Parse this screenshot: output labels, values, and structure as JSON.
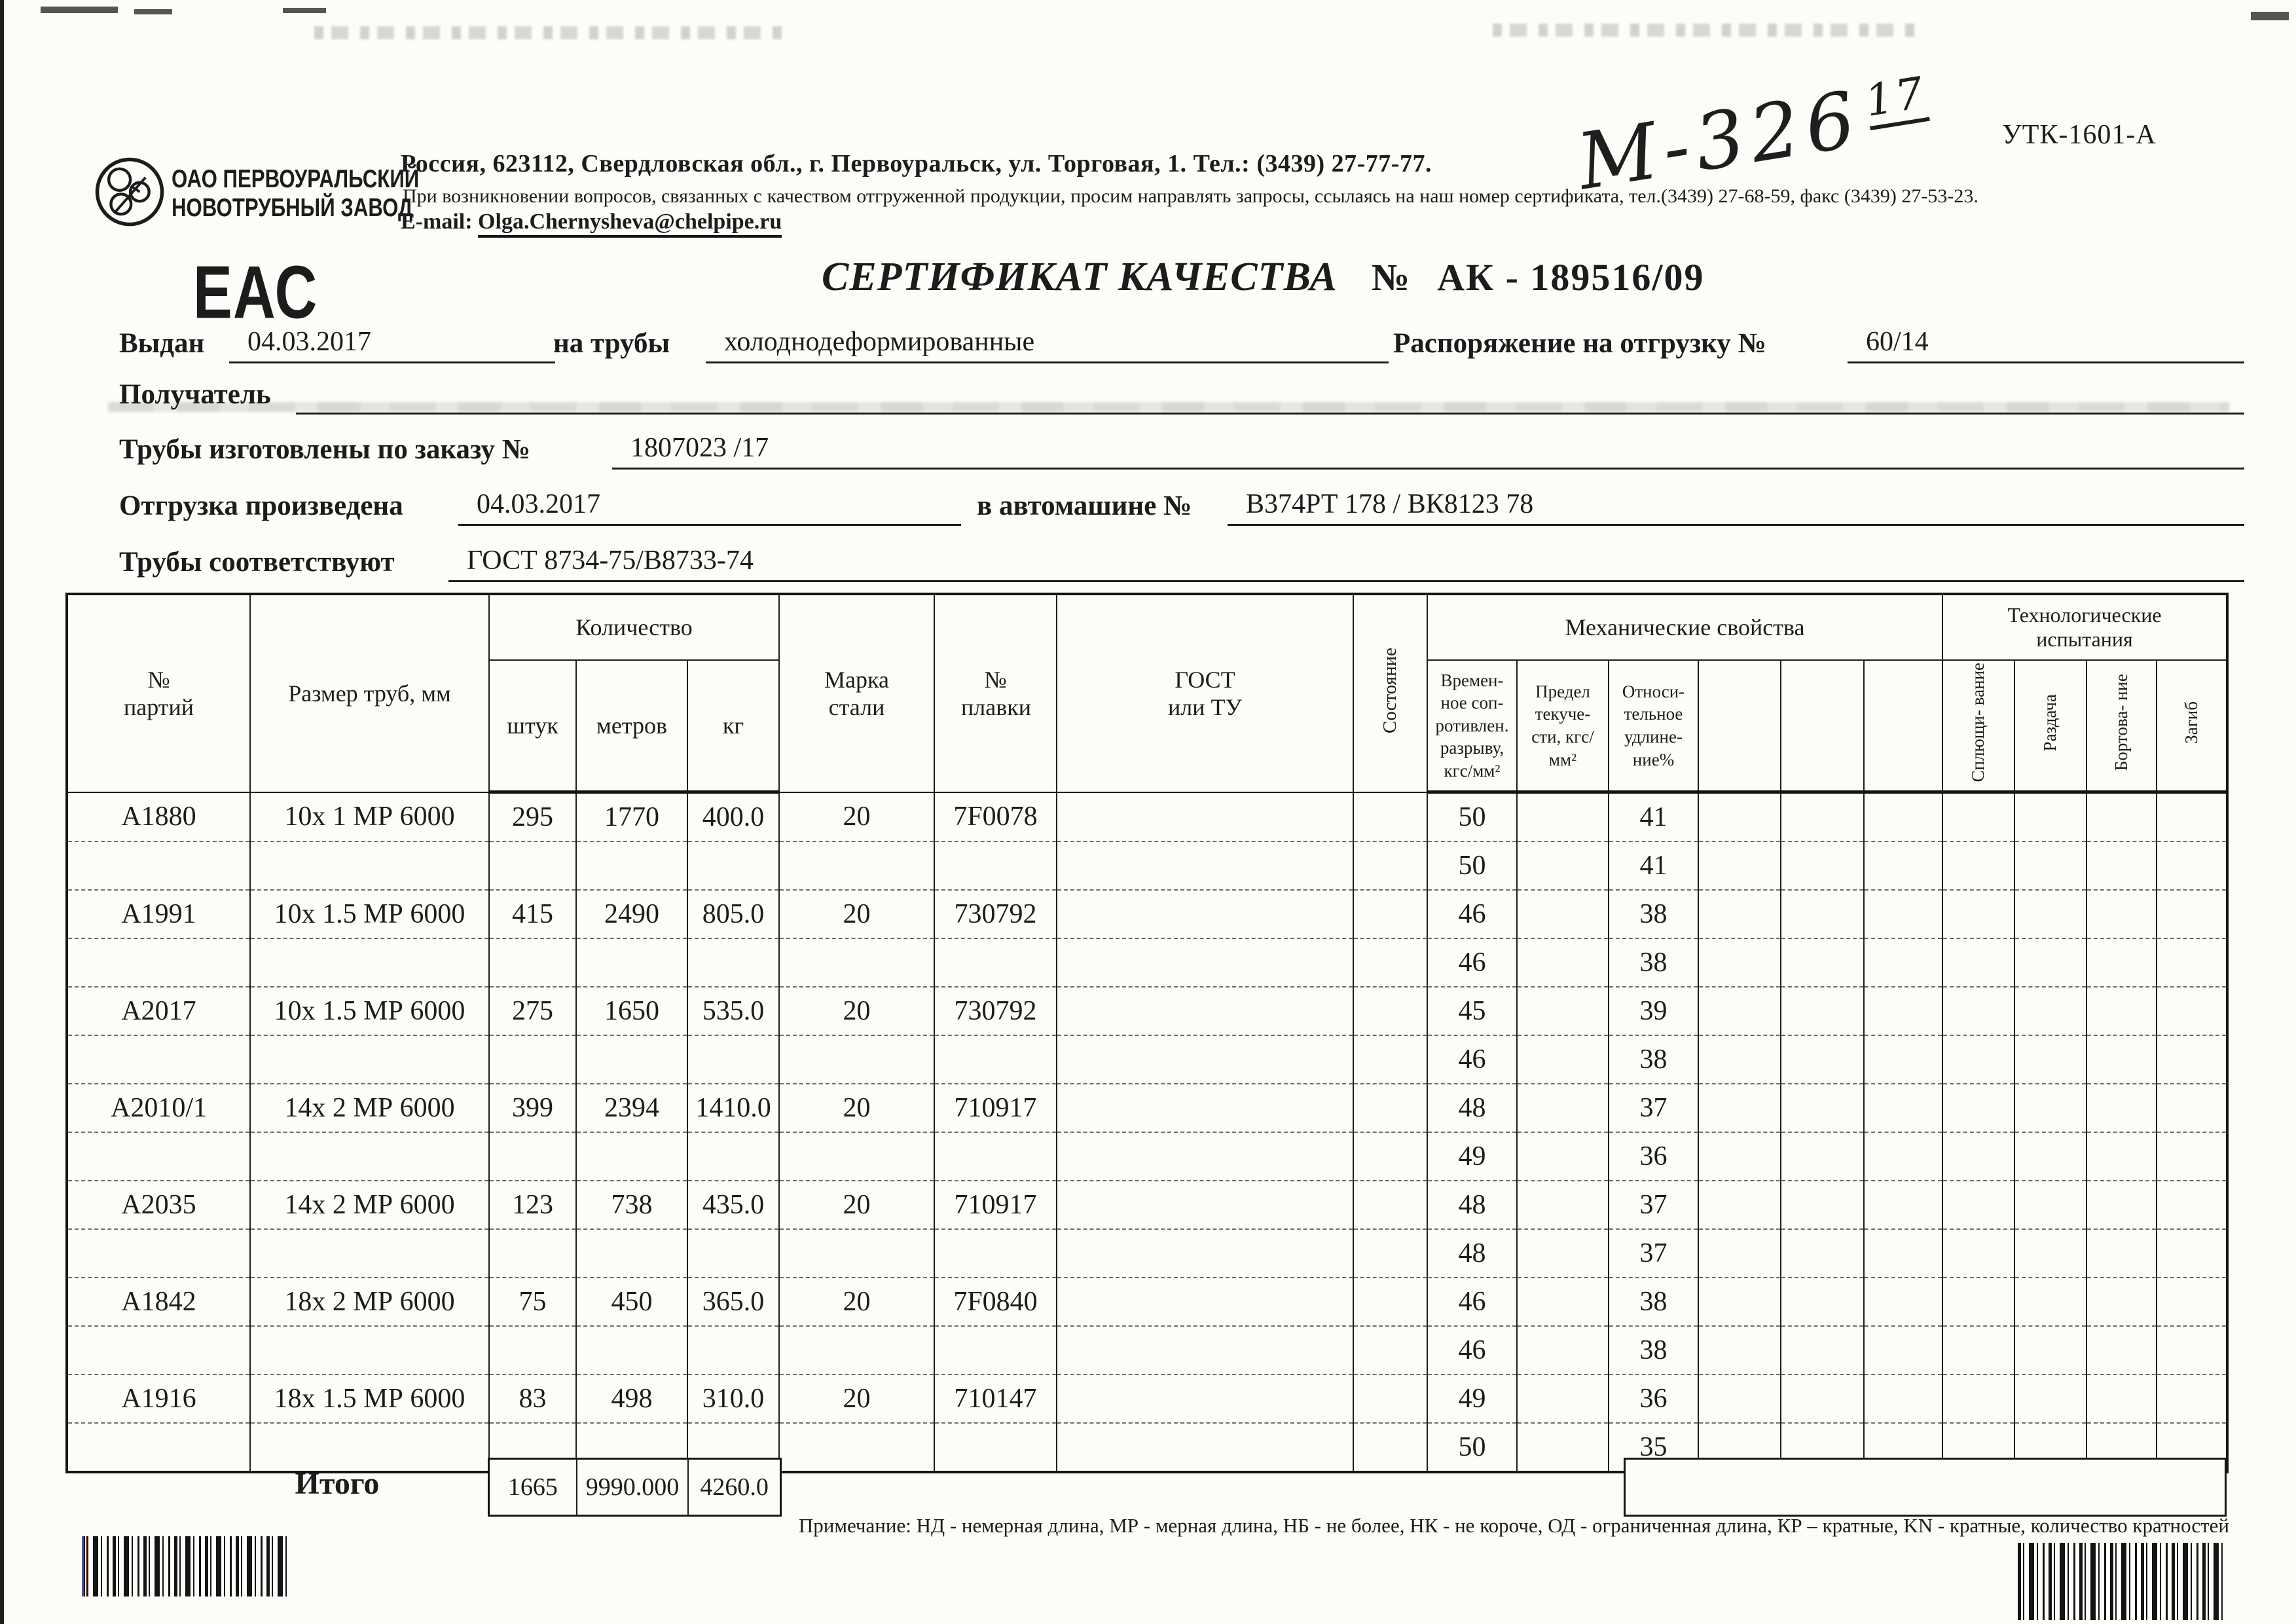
{
  "document_type": "Сертификат качества (скан)",
  "colors": {
    "paper": "#fcfcf8",
    "ink": "#1c1c1c"
  },
  "header": {
    "company_line1": "ОАО ПЕРВОУРАЛЬСКИЙ",
    "company_line2": "НОВОТРУБНЫЙ ЗАВОД",
    "address_line1": "Россия, 623112, Свердловская обл., г. Первоуральск, ул. Торговая, 1. Тел.: (3439) 27-77-77.",
    "address_line2": "При возникновении вопросов, связанных с качеством отгруженной продукции, просим направлять запросы, ссылаясь на наш номер сертификата, тел.(3439) 27-68-59, факс (3439) 27-53-23.",
    "email_label": "E-mail:",
    "email_value": "Olga.Chernysheva@chelpipe.ru",
    "handwritten_number": "М-326",
    "handwritten_sup": "17",
    "form_code": "УТК-1601-А",
    "eac_mark": "ЕАС"
  },
  "title": {
    "text": "СЕРТИФИКАТ КАЧЕСТВА",
    "number_sign": "№",
    "number": "АК - 189516/09"
  },
  "fields": {
    "issued_label": "Выдан",
    "issued_value": "04.03.2017",
    "pipes_label": "на трубы",
    "pipes_value": "холоднодеформированные",
    "shipping_order_label": "Распоряжение на отгрузку №",
    "shipping_order_value": "60/14",
    "receiver_label": "Получатель",
    "receiver_value": "",
    "order_label": "Трубы изготовлены по заказу №",
    "order_value": "1807023  /17",
    "shipped_label": "Отгрузка произведена",
    "shipped_date": "04.03.2017",
    "truck_label": "в автомашине №",
    "truck_value": "В374РТ 178 / ВК8123 78",
    "standard_label": "Трубы соответствуют",
    "standard_value": "ГОСТ 8734-75/В8733-74"
  },
  "table": {
    "headers": {
      "batch": "№ партий",
      "size": "Размер труб, мм",
      "quantity_group": "Количество",
      "pieces": "штук",
      "meters": "метров",
      "kg": "кг",
      "steel": "Марка стали",
      "heat": "№ плавки",
      "gost": "ГОСТ или ТУ",
      "state": "Состояние",
      "mech_group": "Механические свойства",
      "tensile": "Времен- ное соп- ротивлен. разрыву, кгс/мм²",
      "yield": "Предел текуче- сти, кгс/мм²",
      "elongation": "Относи- тельное удлине- ние%",
      "tech_group": "Технологические испытания",
      "flattening": "Сплющи- вание",
      "expansion": "Раздача",
      "flanging": "Бортова- ние",
      "bend": "Загиб"
    },
    "batches": [
      {
        "batch": "А1880",
        "size": "10х 1 МР 6000",
        "pieces": "295",
        "meters": "1770",
        "kg": "400.0",
        "steel": "20",
        "heat": "7F0078",
        "mech": [
          [
            "50",
            "41"
          ],
          [
            "50",
            "41"
          ]
        ]
      },
      {
        "batch": "А1991",
        "size": "10х 1.5 МР 6000",
        "pieces": "415",
        "meters": "2490",
        "kg": "805.0",
        "steel": "20",
        "heat": "730792",
        "mech": [
          [
            "46",
            "38"
          ],
          [
            "46",
            "38"
          ]
        ]
      },
      {
        "batch": "А2017",
        "size": "10х 1.5 МР 6000",
        "pieces": "275",
        "meters": "1650",
        "kg": "535.0",
        "steel": "20",
        "heat": "730792",
        "mech": [
          [
            "45",
            "39"
          ],
          [
            "46",
            "38"
          ]
        ]
      },
      {
        "batch": "А2010/1",
        "size": "14х 2 МР 6000",
        "pieces": "399",
        "meters": "2394",
        "kg": "1410.0",
        "steel": "20",
        "heat": "710917",
        "mech": [
          [
            "48",
            "37"
          ],
          [
            "49",
            "36"
          ]
        ]
      },
      {
        "batch": "А2035",
        "size": "14х 2 МР 6000",
        "pieces": "123",
        "meters": "738",
        "kg": "435.0",
        "steel": "20",
        "heat": "710917",
        "mech": [
          [
            "48",
            "37"
          ],
          [
            "48",
            "37"
          ]
        ]
      },
      {
        "batch": "А1842",
        "size": "18х 2 МР 6000",
        "pieces": "75",
        "meters": "450",
        "kg": "365.0",
        "steel": "20",
        "heat": "7F0840",
        "mech": [
          [
            "46",
            "38"
          ],
          [
            "46",
            "38"
          ]
        ]
      },
      {
        "batch": "А1916",
        "size": "18х 1.5 МР 6000",
        "pieces": "83",
        "meters": "498",
        "kg": "310.0",
        "steel": "20",
        "heat": "710147",
        "mech": [
          [
            "49",
            "36"
          ],
          [
            "50",
            "35"
          ]
        ]
      }
    ],
    "total_label": "Итого",
    "total_pieces": "1665",
    "total_meters": "9990.000",
    "total_kg": "4260.0"
  },
  "note": "Примечание: НД - немерная длина, МР - мерная длина, НБ - не более, НК - не короче, ОД - ограниченная длина, КР – кратные, KN - кратные, количество кратностей"
}
